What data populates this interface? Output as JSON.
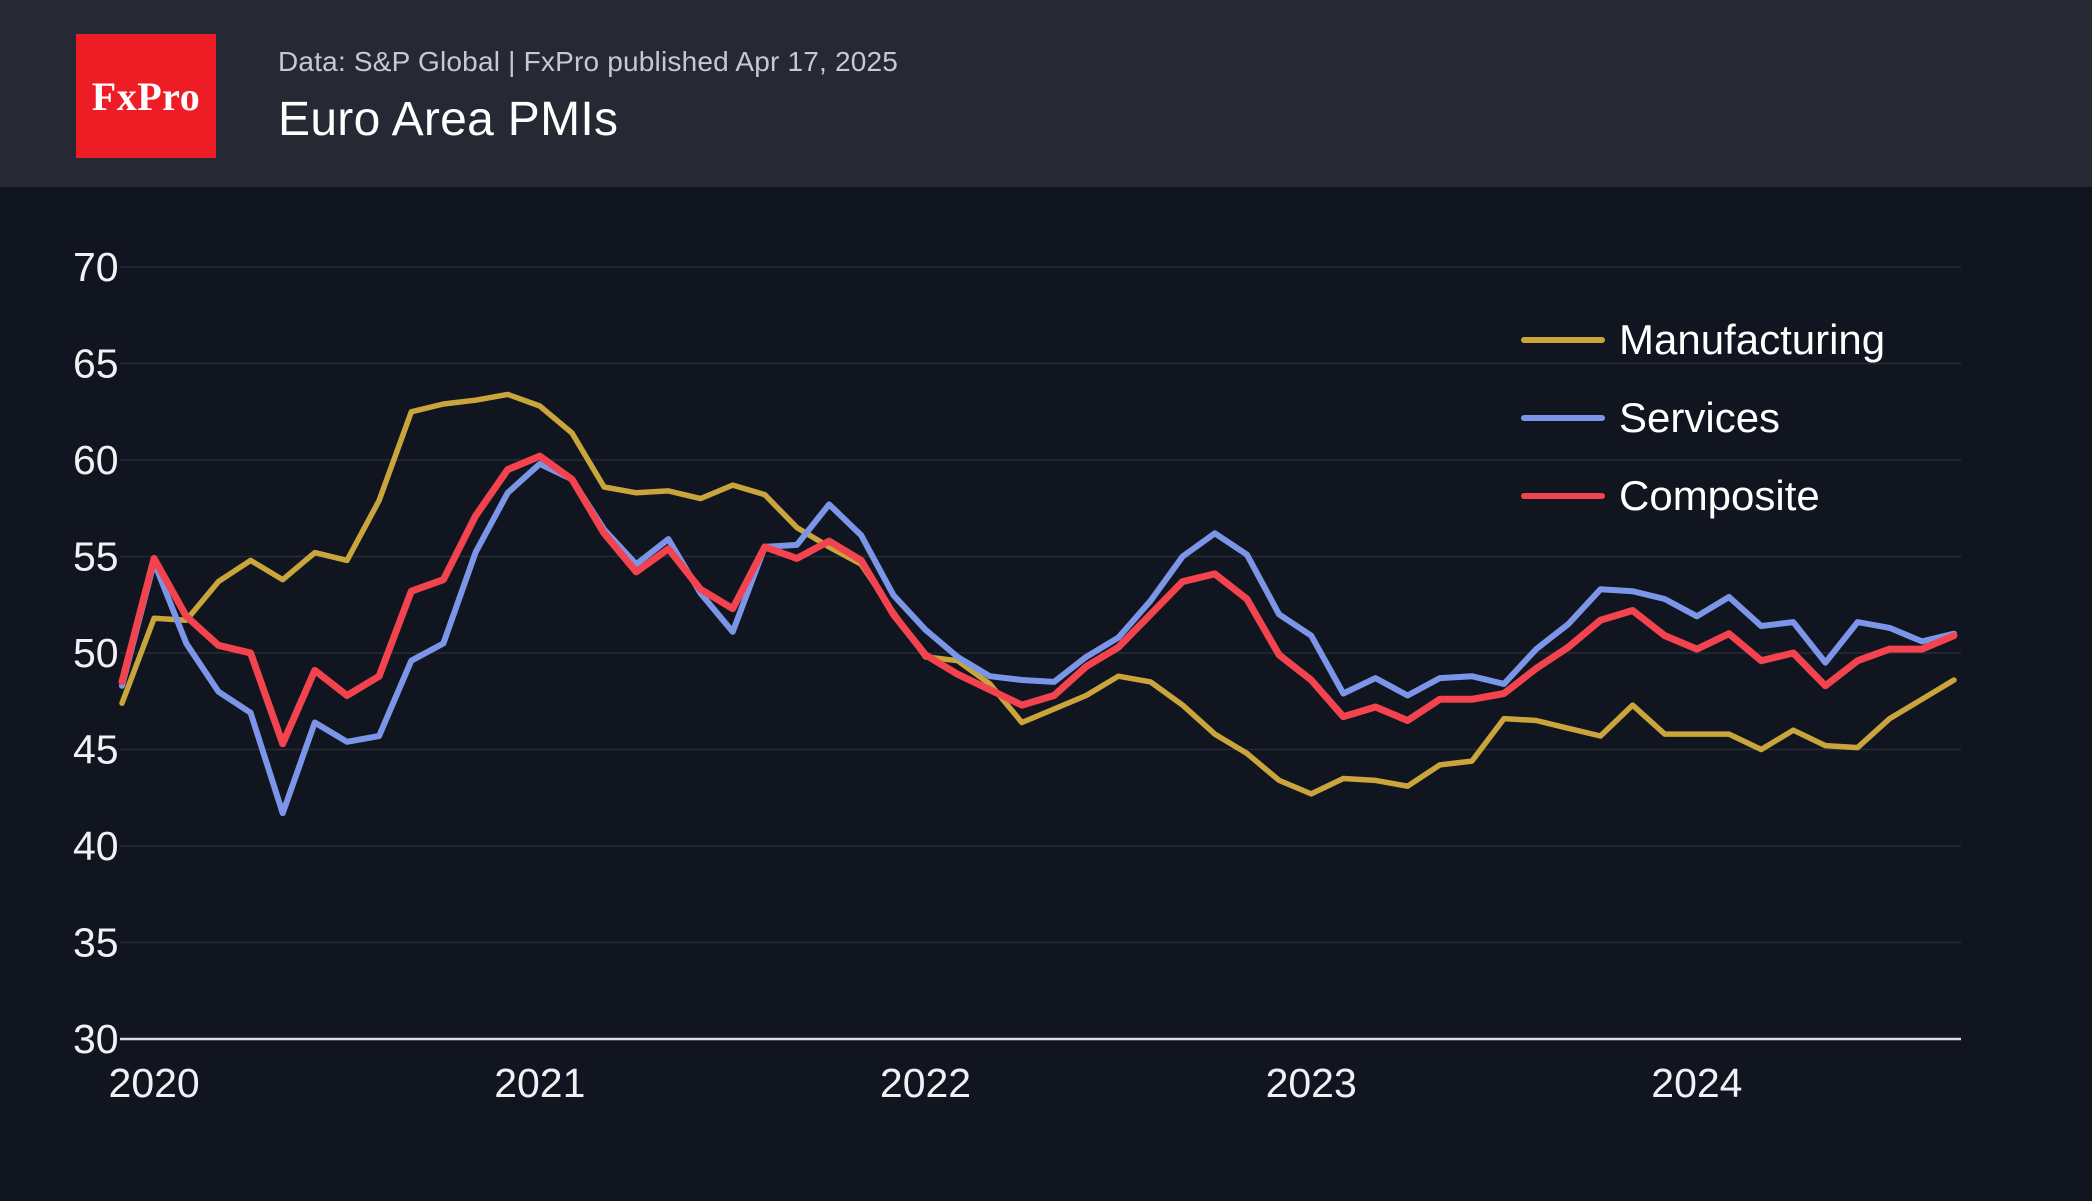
{
  "header": {
    "logo_text": "FxPro",
    "brand_color": "#ee1c25",
    "subtitle": "Data: S&P Global | FxPro published Apr 17, 2025",
    "title": "Euro Area PMIs"
  },
  "chart_data": {
    "type": "line",
    "title": "Euro Area PMIs",
    "x_range": {
      "start": "2020-06",
      "end": "2025-03",
      "interval": "monthly"
    },
    "x_ticks": [
      {
        "label": "2020",
        "month_index": 1
      },
      {
        "label": "2021",
        "month_index": 13
      },
      {
        "label": "2022",
        "month_index": 25
      },
      {
        "label": "2023",
        "month_index": 37
      },
      {
        "label": "2024",
        "month_index": 49
      }
    ],
    "ylim": [
      30,
      70
    ],
    "yticks": [
      30,
      35,
      40,
      45,
      50,
      55,
      60,
      65,
      70
    ],
    "grid": true,
    "legend_position": "top-right",
    "series": [
      {
        "name": "Manufacturing",
        "color": "#c9a53c",
        "values": [
          47.4,
          51.8,
          51.7,
          53.7,
          54.8,
          53.8,
          55.2,
          54.8,
          57.9,
          62.5,
          62.9,
          63.1,
          63.4,
          62.8,
          61.4,
          58.6,
          58.3,
          58.4,
          58.0,
          58.7,
          58.2,
          56.5,
          55.5,
          54.6,
          52.1,
          49.8,
          49.6,
          48.4,
          46.4,
          47.1,
          47.8,
          48.8,
          48.5,
          47.3,
          45.8,
          44.8,
          43.4,
          42.7,
          43.5,
          43.4,
          43.1,
          44.2,
          44.4,
          46.6,
          46.5,
          46.1,
          45.7,
          47.3,
          45.8,
          45.8,
          45.8,
          45.0,
          46.0,
          45.2,
          45.1,
          46.6,
          47.6,
          48.6
        ]
      },
      {
        "name": "Services",
        "color": "#7b96e8",
        "values": [
          48.3,
          54.7,
          50.5,
          48.0,
          46.9,
          41.7,
          46.4,
          45.4,
          45.7,
          49.6,
          50.5,
          55.2,
          58.3,
          59.8,
          59.0,
          56.4,
          54.6,
          55.9,
          53.1,
          51.1,
          55.5,
          55.6,
          57.7,
          56.1,
          53.0,
          51.2,
          49.8,
          48.8,
          48.6,
          48.5,
          49.8,
          50.8,
          52.7,
          55.0,
          56.2,
          55.1,
          52.0,
          50.9,
          47.9,
          48.7,
          47.8,
          48.7,
          48.8,
          48.4,
          50.2,
          51.5,
          53.3,
          53.2,
          52.8,
          51.9,
          52.9,
          51.4,
          51.6,
          49.5,
          51.6,
          51.3,
          50.6,
          51.0
        ]
      },
      {
        "name": "Composite",
        "color": "#f2434e",
        "values": [
          48.5,
          54.9,
          51.9,
          50.4,
          50.0,
          45.3,
          49.1,
          47.8,
          48.8,
          53.2,
          53.8,
          57.1,
          59.5,
          60.2,
          59.0,
          56.2,
          54.2,
          55.4,
          53.3,
          52.3,
          55.5,
          54.9,
          55.8,
          54.8,
          52.0,
          49.9,
          48.9,
          48.1,
          47.3,
          47.8,
          49.3,
          50.3,
          52.0,
          53.7,
          54.1,
          52.8,
          49.9,
          48.6,
          46.7,
          47.2,
          46.5,
          47.6,
          47.6,
          47.9,
          49.2,
          50.3,
          51.7,
          52.2,
          50.9,
          50.2,
          51.0,
          49.6,
          50.0,
          48.3,
          49.6,
          50.2,
          50.2,
          50.9
        ]
      }
    ]
  }
}
